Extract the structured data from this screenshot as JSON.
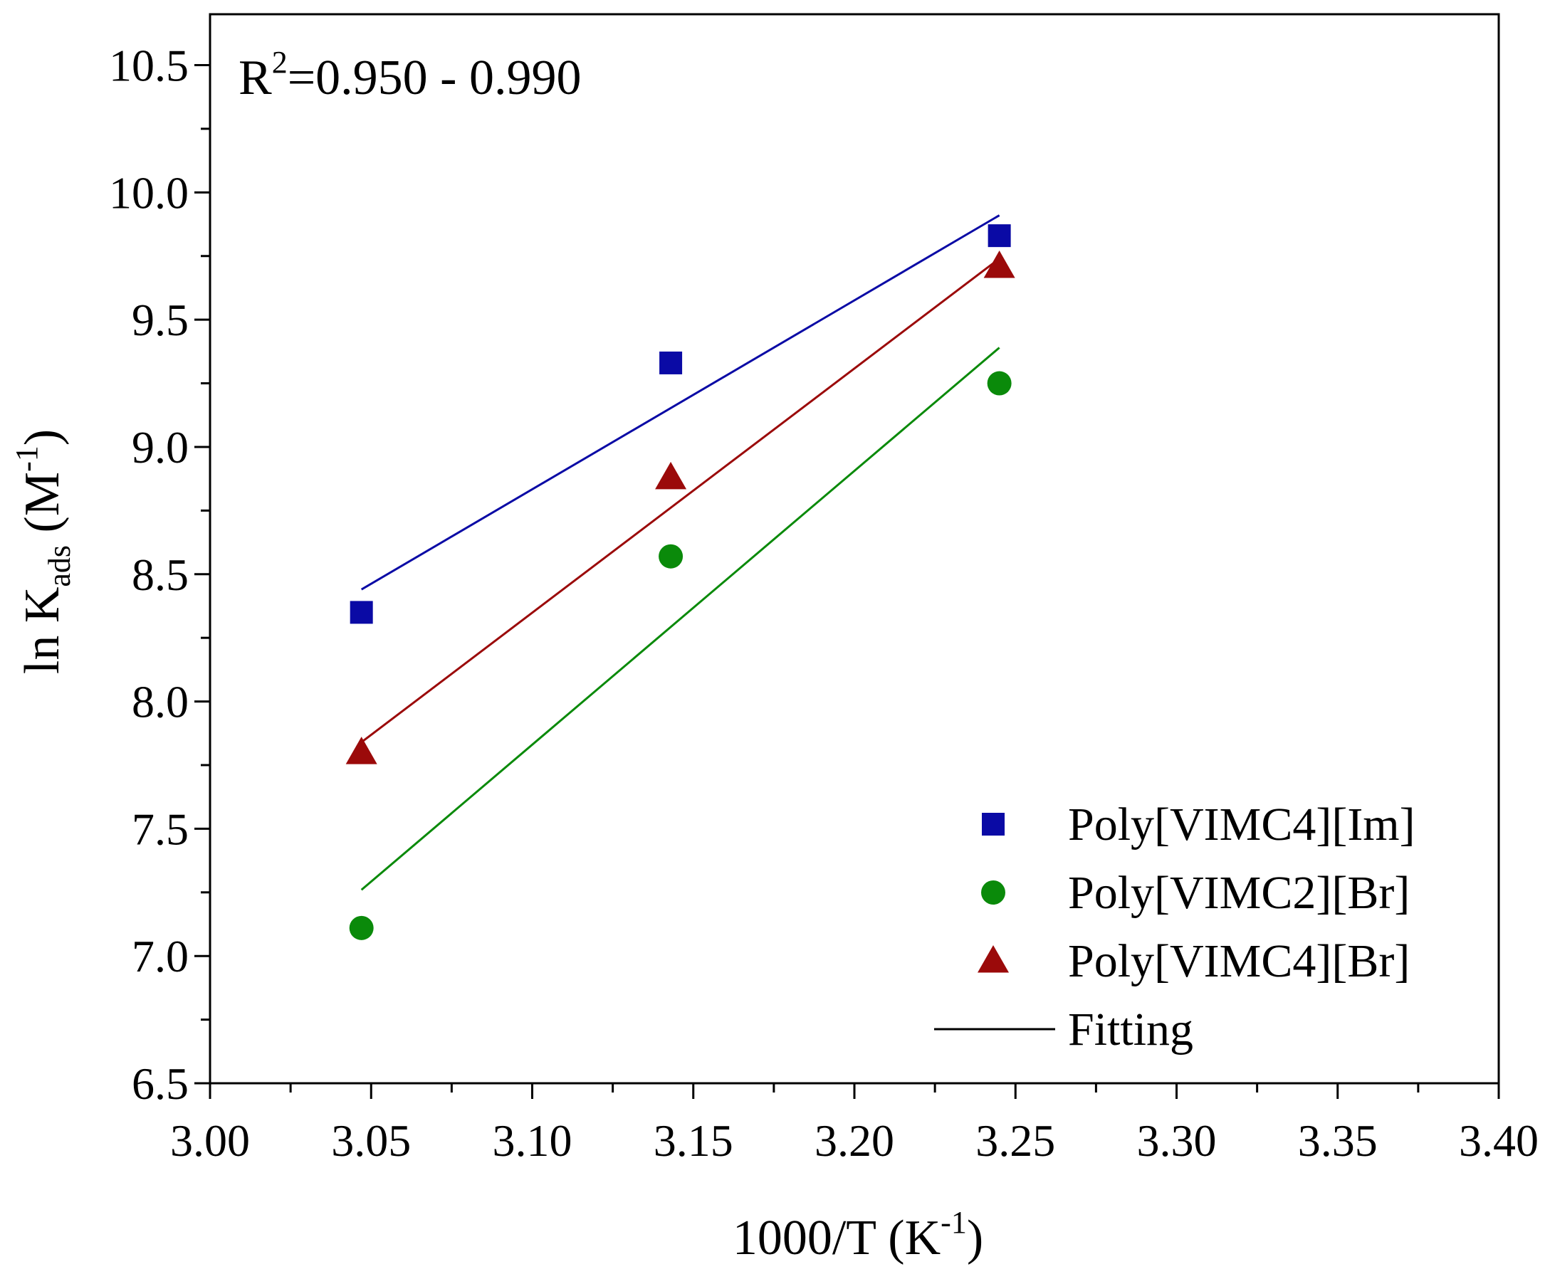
{
  "chart_data": {
    "type": "scatter",
    "title": "",
    "xlabel": {
      "main": "1000/T (K",
      "sup": "-1",
      "close": ")"
    },
    "ylabel": {
      "main": "ln K",
      "sub": "ads",
      "unit_open": " (M",
      "sup": "-1",
      "close": ")"
    },
    "xlim": [
      3.0,
      3.4
    ],
    "ylim": [
      6.5,
      10.7
    ],
    "xticks": [
      "3.00",
      "3.05",
      "3.10",
      "3.15",
      "3.20",
      "3.25",
      "3.30",
      "3.35",
      "3.40"
    ],
    "yticks": [
      "6.5",
      "7.0",
      "7.5",
      "8.0",
      "8.5",
      "9.0",
      "9.5",
      "10.0",
      "10.5"
    ],
    "grid": false,
    "legend_position": "bottom-right",
    "annotation": {
      "base": "R",
      "sup": "2",
      "rest": "=0.950 - 0.990"
    },
    "series": [
      {
        "name": "Poly[VIMC4][Im]",
        "marker": "square",
        "color": "#0a0aa5",
        "x": [
          3.047,
          3.143,
          3.245
        ],
        "y": [
          8.35,
          9.33,
          9.83
        ],
        "fit": {
          "x": [
            3.047,
            3.245
          ],
          "y": [
            8.44,
            9.91
          ]
        }
      },
      {
        "name": "Poly[VIMC2][Br]",
        "marker": "circle",
        "color": "#0a8a0a",
        "x": [
          3.047,
          3.143,
          3.245
        ],
        "y": [
          7.11,
          8.57,
          9.25
        ],
        "fit": {
          "x": [
            3.047,
            3.245
          ],
          "y": [
            7.26,
            9.39
          ]
        }
      },
      {
        "name": "Poly[VIMC4][Br]",
        "marker": "triangle",
        "color": "#9b0a0a",
        "x": [
          3.047,
          3.143,
          3.245
        ],
        "y": [
          7.8,
          8.88,
          9.71
        ],
        "fit": {
          "x": [
            3.047,
            3.245
          ],
          "y": [
            7.84,
            9.74
          ]
        }
      }
    ],
    "fitting_legend": {
      "name": "Fitting",
      "color": "#000000"
    }
  }
}
